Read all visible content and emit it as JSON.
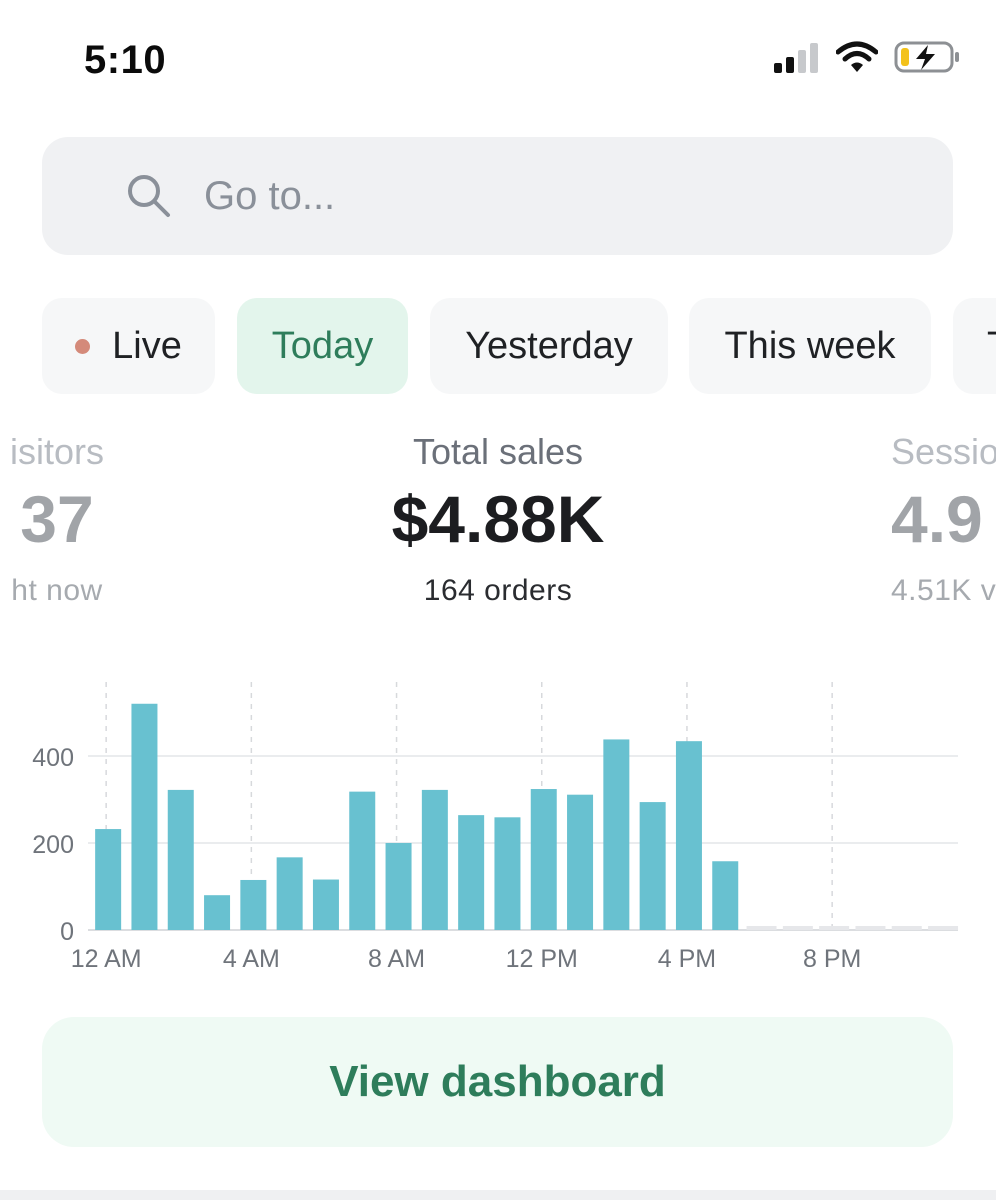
{
  "status_bar": {
    "time": "5:10",
    "icons": [
      "cellular-signal-icon",
      "wifi-icon",
      "battery-charging-icon"
    ]
  },
  "search": {
    "placeholder": "Go to...",
    "icon": "search-icon"
  },
  "tabs": [
    {
      "label": "Live",
      "has_dot": true,
      "dot_color": "#d48a7a",
      "active": false
    },
    {
      "label": "Today",
      "active": true
    },
    {
      "label": "Yesterday",
      "active": false
    },
    {
      "label": "This week",
      "active": false
    },
    {
      "label": "T",
      "active": false
    }
  ],
  "metrics": {
    "left": {
      "label": "isitors",
      "value": "37",
      "sub": "ht now"
    },
    "center": {
      "label": "Total sales",
      "value": "$4.88K",
      "sub": "164 orders"
    },
    "right": {
      "label": "Sessio",
      "value": "4.9",
      "sub": "4.51K v"
    }
  },
  "chart_data": {
    "type": "bar",
    "categories": [
      "12 AM",
      "1 AM",
      "2 AM",
      "3 AM",
      "4 AM",
      "5 AM",
      "6 AM",
      "7 AM",
      "8 AM",
      "9 AM",
      "10 AM",
      "11 AM",
      "12 PM",
      "1 PM",
      "2 PM",
      "3 PM",
      "4 PM",
      "5 PM",
      "6 PM",
      "7 PM",
      "8 PM",
      "9 PM",
      "10 PM",
      "11 PM"
    ],
    "values": [
      232,
      520,
      322,
      80,
      115,
      167,
      116,
      318,
      200,
      322,
      264,
      259,
      324,
      311,
      438,
      294,
      434,
      158,
      null,
      null,
      null,
      null,
      null,
      null
    ],
    "x_tick_labels": [
      "12 AM",
      "4 AM",
      "8 AM",
      "12 PM",
      "4 PM",
      "8 PM"
    ],
    "y_ticks": [
      0,
      200,
      400
    ],
    "ylim": [
      0,
      570
    ],
    "title": "",
    "xlabel": "",
    "ylabel": "",
    "bar_color": "#68c1d0",
    "future_color": "#e6e7ea",
    "grid": true,
    "legend": "none"
  },
  "cta": {
    "label": "View dashboard"
  },
  "colors": {
    "accent_green": "#2e7d5b",
    "active_tab_bg": "#e3f5ec",
    "cta_bg": "#effaf4"
  }
}
